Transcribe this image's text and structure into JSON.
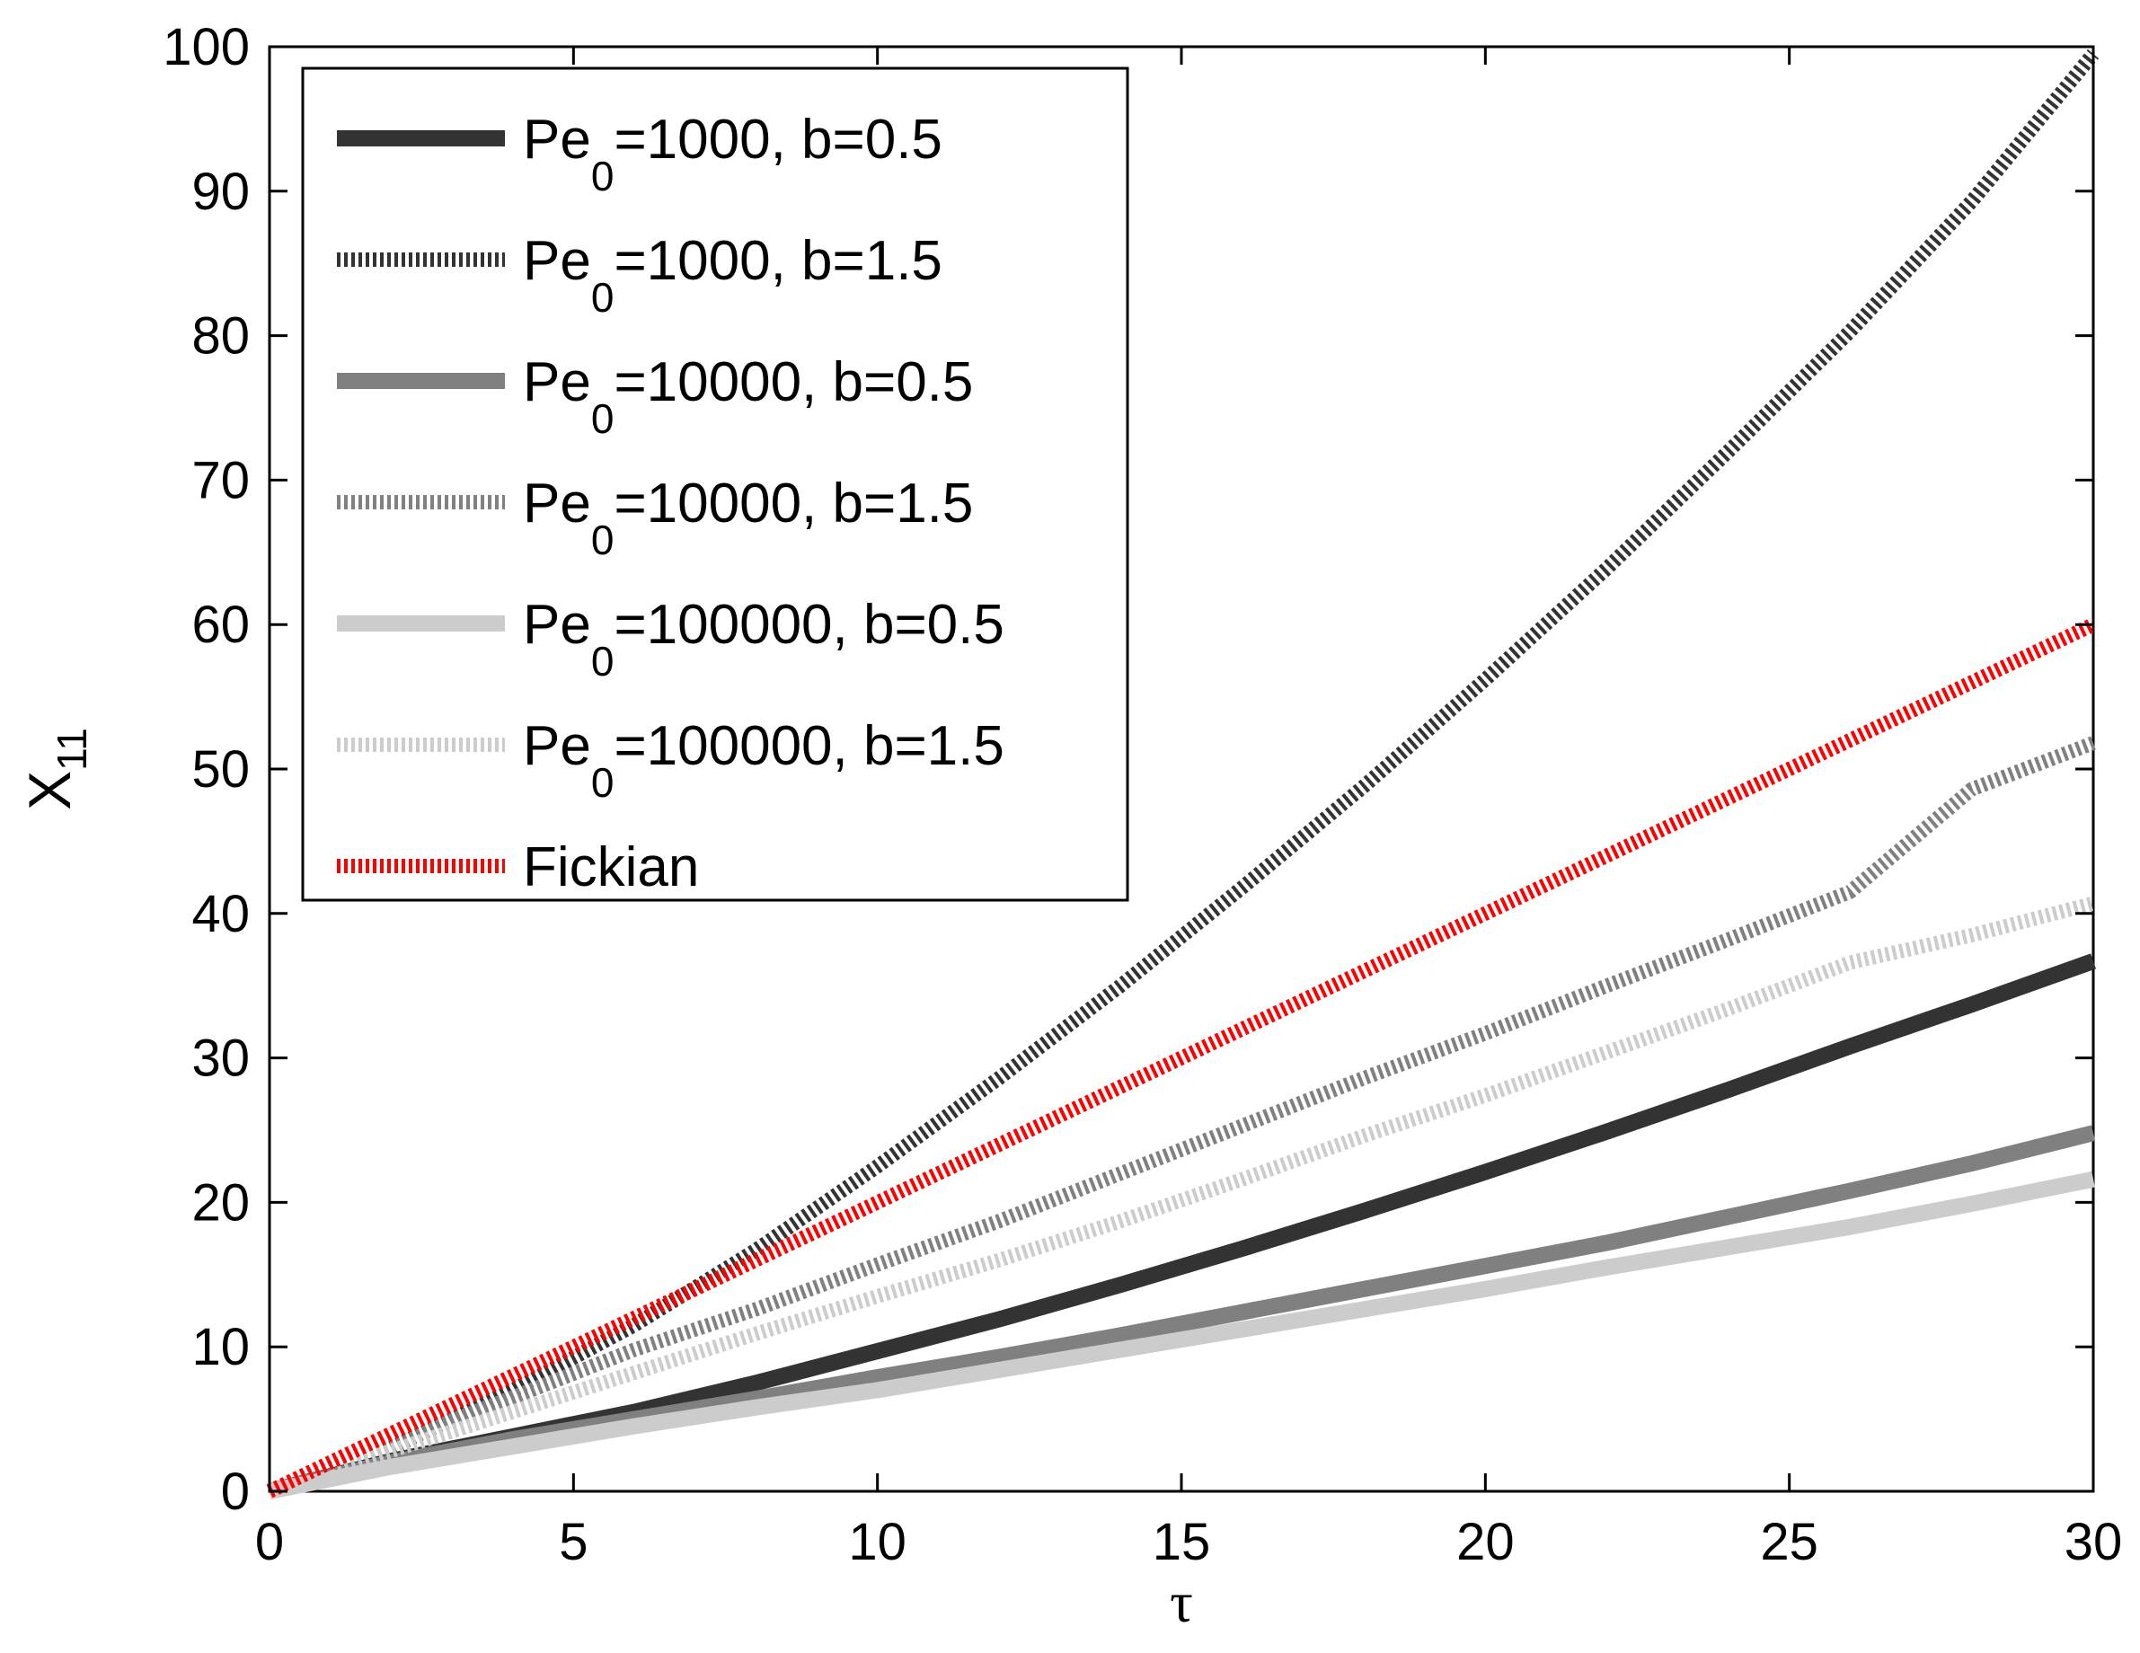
{
  "chart_data": {
    "type": "line",
    "title": "",
    "xlabel": "τ",
    "ylabel": {
      "main": "X",
      "sub": "11"
    },
    "xlim": [
      0,
      30
    ],
    "ylim": [
      0,
      100
    ],
    "xticks": [
      0,
      5,
      10,
      15,
      20,
      25,
      30
    ],
    "yticks": [
      0,
      10,
      20,
      30,
      40,
      50,
      60,
      70,
      80,
      90,
      100
    ],
    "grid": false,
    "legend_position": "top-left",
    "series": [
      {
        "name": "Pe0=1000, b=0.5",
        "label_main": "Pe",
        "label_sub": "0",
        "label_rest": "=1000, b=0.5",
        "color": "#333333",
        "style": "solid",
        "x": [
          0,
          2,
          4,
          6,
          8,
          10,
          12,
          14,
          16,
          18,
          20,
          22,
          24,
          26,
          28,
          30
        ],
        "y": [
          0,
          2.1,
          3.8,
          5.5,
          7.5,
          9.7,
          11.9,
          14.3,
          16.8,
          19.4,
          22.1,
          24.9,
          27.8,
          30.8,
          33.7,
          36.7
        ]
      },
      {
        "name": "Pe0=1000, b=1.5",
        "label_main": "Pe",
        "label_sub": "0",
        "label_rest": "=1000, b=1.5",
        "color": "#333333",
        "style": "dotted",
        "x": [
          0,
          2,
          4,
          6,
          8,
          10,
          12,
          14,
          16,
          18,
          20,
          22,
          24,
          26,
          28,
          30
        ],
        "y": [
          0,
          3.0,
          7.0,
          11.5,
          16.7,
          22.5,
          28.6,
          35.0,
          41.8,
          48.8,
          56.2,
          63.9,
          72.0,
          80.3,
          89.3,
          99.5
        ]
      },
      {
        "name": "Pe0=10000, b=0.5",
        "label_main": "Pe",
        "label_sub": "0",
        "label_rest": "=10000, b=0.5",
        "color": "#808080",
        "style": "solid",
        "x": [
          0,
          2,
          4,
          6,
          8,
          10,
          12,
          14,
          16,
          18,
          20,
          22,
          24,
          26,
          28,
          30
        ],
        "y": [
          0,
          2.0,
          3.6,
          5.0,
          6.4,
          7.9,
          9.3,
          10.8,
          12.4,
          14.0,
          15.6,
          17.2,
          19.0,
          20.8,
          22.7,
          24.8
        ]
      },
      {
        "name": "Pe0=10000, b=1.5",
        "label_main": "Pe",
        "label_sub": "0",
        "label_rest": "=10000, b=1.5",
        "color": "#808080",
        "style": "dotted",
        "x": [
          0,
          2,
          4,
          6,
          8,
          10,
          12,
          14,
          16,
          18,
          20,
          22,
          24,
          26,
          28,
          30
        ],
        "y": [
          0,
          3.3,
          6.5,
          9.8,
          12.6,
          15.7,
          18.7,
          22.0,
          25.3,
          28.6,
          31.7,
          35.0,
          38.2,
          41.5,
          48.6,
          51.8
        ]
      },
      {
        "name": "Pe0=100000, b=0.5",
        "label_main": "Pe",
        "label_sub": "0",
        "label_rest": "=100000, b=0.5",
        "color": "#cccccc",
        "style": "solid",
        "x": [
          0,
          2,
          4,
          6,
          8,
          10,
          12,
          14,
          16,
          18,
          20,
          22,
          24,
          26,
          28,
          30
        ],
        "y": [
          0,
          1.7,
          3.1,
          4.5,
          5.8,
          7.0,
          8.4,
          9.8,
          11.2,
          12.6,
          14.0,
          15.5,
          16.9,
          18.3,
          19.9,
          21.6
        ]
      },
      {
        "name": "Pe0=100000, b=1.5",
        "label_main": "Pe",
        "label_sub": "0",
        "label_rest": "=100000, b=1.5",
        "color": "#cccccc",
        "style": "dotted",
        "x": [
          0,
          2,
          4,
          6,
          8,
          10,
          12,
          14,
          16,
          18,
          20,
          22,
          24,
          26,
          28,
          30
        ],
        "y": [
          0,
          2.8,
          5.5,
          8.2,
          10.9,
          13.5,
          16.0,
          18.7,
          21.6,
          24.6,
          27.4,
          30.4,
          33.4,
          36.6,
          38.5,
          40.7
        ]
      },
      {
        "name": "Fickian",
        "label_main": "Fickian",
        "label_sub": "",
        "label_rest": "",
        "color": "#ff0000",
        "style": "dotted",
        "x": [
          0,
          30
        ],
        "y": [
          0,
          60
        ]
      }
    ]
  }
}
